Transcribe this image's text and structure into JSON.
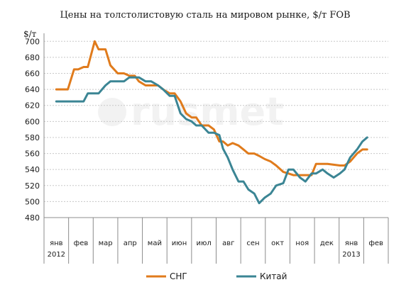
{
  "chart_data": {
    "type": "line",
    "title": "Цены на толстолистовую сталь на мировом рынке, $/т FOB",
    "ylabel": "$/т",
    "xlabel": "",
    "ylim": [
      480,
      710
    ],
    "yticks": [
      480,
      500,
      520,
      540,
      560,
      580,
      600,
      620,
      640,
      660,
      680,
      700
    ],
    "grid": true,
    "legend_position": "bottom",
    "months": [
      {
        "label": "янв",
        "year": "2012"
      },
      {
        "label": "фев",
        "year": ""
      },
      {
        "label": "мар",
        "year": ""
      },
      {
        "label": "апр",
        "year": ""
      },
      {
        "label": "май",
        "year": ""
      },
      {
        "label": "июн",
        "year": ""
      },
      {
        "label": "июл",
        "year": ""
      },
      {
        "label": "авг",
        "year": ""
      },
      {
        "label": "сен",
        "year": ""
      },
      {
        "label": "окт",
        "year": ""
      },
      {
        "label": "ноя",
        "year": ""
      },
      {
        "label": "дек",
        "year": ""
      },
      {
        "label": "янв",
        "year": "2013"
      },
      {
        "label": "фев",
        "year": ""
      }
    ],
    "series": [
      {
        "name": "СНГ",
        "color": "#e07b1c",
        "x": [
          0,
          0.47,
          0.72,
          0.89,
          1.11,
          1.28,
          1.56,
          1.72,
          2,
          2.2,
          2.5,
          2.75,
          2.97,
          3.19,
          3.36,
          3.63,
          3.86,
          4.14,
          4.34,
          4.61,
          4.81,
          5.05,
          5.28,
          5.5,
          5.69,
          5.91,
          6.19,
          6.41,
          6.63,
          6.78,
          6.97,
          7.17,
          7.41,
          7.61,
          7.81,
          8.05,
          8.25,
          8.48,
          8.72,
          8.94,
          9.23,
          9.44,
          9.64,
          9.91,
          10.13,
          10.38,
          10.56,
          10.83,
          11.03,
          11.28,
          11.53,
          11.72,
          11.95,
          12.23,
          12.45,
          12.64
        ],
        "y": [
          640,
          640,
          665,
          665,
          668,
          668,
          700,
          690,
          690,
          670,
          660,
          660,
          657,
          657,
          650,
          645,
          645,
          645,
          640,
          635,
          635,
          625,
          610,
          605,
          605,
          595,
          595,
          590,
          575,
          575,
          570,
          573,
          570,
          565,
          560,
          560,
          557,
          553,
          550,
          545,
          537,
          535,
          533,
          533,
          533,
          533,
          547,
          547,
          547,
          546,
          545,
          545,
          550,
          560,
          565,
          565
        ]
      },
      {
        "name": "Китай",
        "color": "#3b8594",
        "x": [
          0,
          0.47,
          0.72,
          0.89,
          1.11,
          1.28,
          1.56,
          1.72,
          2,
          2.2,
          2.5,
          2.75,
          2.97,
          3.19,
          3.36,
          3.63,
          3.86,
          4.14,
          4.34,
          4.61,
          4.81,
          5.05,
          5.28,
          5.5,
          5.69,
          5.91,
          6.19,
          6.41,
          6.63,
          6.78,
          6.97,
          7.17,
          7.41,
          7.61,
          7.81,
          8.05,
          8.25,
          8.48,
          8.72,
          8.94,
          9.23,
          9.44,
          9.64,
          9.91,
          10.13,
          10.38,
          10.56,
          10.83,
          11.03,
          11.28,
          11.53,
          11.72,
          11.95,
          12.23,
          12.45,
          12.64
        ],
        "y": [
          625,
          625,
          625,
          625,
          625,
          635,
          635,
          635,
          645,
          650,
          650,
          650,
          655,
          655,
          655,
          650,
          650,
          645,
          640,
          632,
          632,
          610,
          603,
          600,
          595,
          595,
          586,
          586,
          583,
          566,
          555,
          540,
          525,
          525,
          515,
          510,
          498,
          505,
          510,
          520,
          523,
          540,
          540,
          530,
          525,
          535,
          535,
          540,
          535,
          530,
          535,
          540,
          555,
          565,
          575,
          580
        ]
      }
    ]
  }
}
